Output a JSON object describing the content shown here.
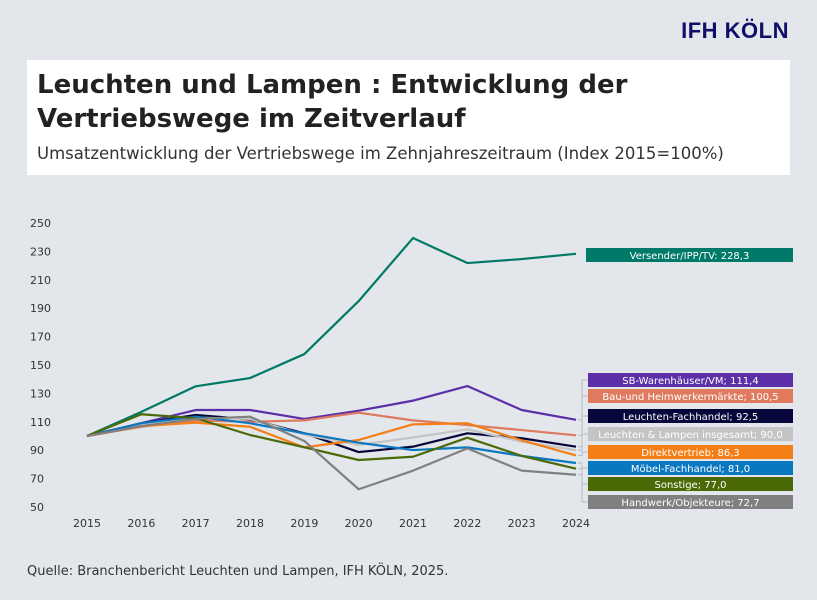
{
  "logo": "IFH KÖLN",
  "title": "Leuchten und Lampen : Entwicklung der Vertriebswege im Zeitverlauf",
  "subtitle": "Umsatzentwicklung der Vertriebswege im Zehnjahreszeitraum (Index 2015=100%)",
  "source": "Quelle: Branchenbericht Leuchten und Lampen, IFH KÖLN, 2025.",
  "chart_data": {
    "type": "line",
    "x": [
      2015,
      2016,
      2017,
      2018,
      2019,
      2020,
      2021,
      2022,
      2023,
      2024
    ],
    "ylim": [
      50,
      250
    ],
    "yticks": [
      50,
      70,
      90,
      110,
      130,
      150,
      170,
      190,
      210,
      230,
      250
    ],
    "grid": false,
    "legend": "right, labels at line ends",
    "series": [
      {
        "name": "Versender/IPP/TV",
        "label": "Versender/IPP/TV: 228,3",
        "color": "#007a68",
        "values": [
          100,
          117,
          135,
          140.8,
          157.7,
          195,
          239.4,
          221.8,
          224.6,
          228.3
        ]
      },
      {
        "name": "SB-Warenhäuser/VM",
        "label": "SB-Warenhäuser/VM; 111,4",
        "color": "#5b2fa8",
        "values": [
          100,
          109,
          118.3,
          118.3,
          112,
          117.8,
          124.9,
          135.2,
          118.3,
          111.4
        ]
      },
      {
        "name": "Bau-und Heimwerkermärkte",
        "label": "Bau-und Heimwerkermärkte; 100,5",
        "color": "#df7a5e",
        "values": [
          100,
          106.5,
          111,
          110,
          111,
          116.4,
          111,
          107.7,
          104.2,
          100.5
        ]
      },
      {
        "name": "Leuchten-Fachhandel",
        "label": "Leuchten-Fachhandel; 92,5",
        "color": "#06063a",
        "values": [
          100,
          109,
          114.8,
          111.7,
          101.9,
          88.7,
          92.5,
          101.9,
          98.4,
          92.5
        ]
      },
      {
        "name": "Leuchten & Lampen insgesamt",
        "label": "Leuchten & Lampen insgesamt; 90,0",
        "color": "#c4c4c4",
        "values": [
          100,
          108,
          113,
          112,
          101,
          93.7,
          99,
          104.7,
          96,
          90
        ]
      },
      {
        "name": "Direktvertrieb",
        "label": "Direktvertrieb; 86,3",
        "color": "#f47f16",
        "values": [
          100,
          107,
          109.4,
          106.5,
          92,
          97.2,
          108.2,
          109,
          97,
          86.3
        ]
      },
      {
        "name": "Möbel-Fachhandel",
        "label": "Möbel-Fachhandel; 81,0",
        "color": "#0a78c0",
        "values": [
          100,
          109,
          113.6,
          109,
          101.9,
          95.3,
          90.1,
          92,
          86,
          81
        ]
      },
      {
        "name": "Sonstige",
        "label": "Sonstige; 77,0",
        "color": "#4a6a08",
        "values": [
          100,
          115.3,
          112.5,
          100.7,
          92,
          83.1,
          85.4,
          98.8,
          86,
          77
        ]
      },
      {
        "name": "Handwerk/Objekteure",
        "label": "Handwerk/Objekteure; 72,7",
        "color": "#808080",
        "values": [
          100,
          107,
          112,
          113.6,
          96.5,
          62.5,
          75.6,
          91.3,
          75.6,
          72.7
        ]
      }
    ]
  }
}
